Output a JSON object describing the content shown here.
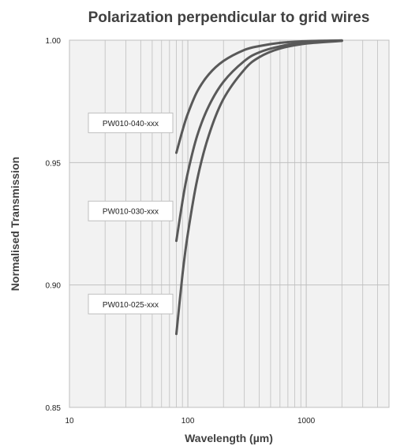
{
  "chart_data": {
    "type": "line",
    "title": "Polarization perpendicular to grid wires",
    "xlabel": "Wavelength (µm)",
    "ylabel": "Normalised Transmission",
    "x_scale": "log",
    "xlim": [
      10,
      5000
    ],
    "ylim": [
      0.85,
      1.0
    ],
    "x_ticks": [
      "10",
      "100",
      "1000"
    ],
    "y_ticks": [
      "0.85",
      "0.90",
      "0.95",
      "1.00"
    ],
    "grid": true,
    "colors": {
      "line": "#595959",
      "grid": "#bfbfbf",
      "plot_bg": "#f2f2f2",
      "label_border": "#bfbfbf"
    },
    "series": [
      {
        "name": "PW010-040-xxx",
        "x": [
          80,
          90,
          100,
          120,
          150,
          200,
          300,
          400,
          600,
          1000,
          2000
        ],
        "y": [
          0.954,
          0.963,
          0.97,
          0.979,
          0.986,
          0.9915,
          0.996,
          0.9976,
          0.9989,
          0.9996,
          0.9999
        ]
      },
      {
        "name": "PW010-030-xxx",
        "x": [
          80,
          90,
          100,
          120,
          150,
          200,
          300,
          400,
          600,
          1000,
          2000
        ],
        "y": [
          0.918,
          0.934,
          0.946,
          0.961,
          0.973,
          0.983,
          0.9915,
          0.995,
          0.9975,
          0.9991,
          0.9998
        ]
      },
      {
        "name": "PW010-025-xxx",
        "x": [
          80,
          90,
          100,
          120,
          150,
          200,
          300,
          400,
          600,
          1000,
          2000
        ],
        "y": [
          0.88,
          0.904,
          0.921,
          0.943,
          0.961,
          0.976,
          0.988,
          0.993,
          0.9966,
          0.9986,
          0.9997
        ]
      }
    ]
  }
}
